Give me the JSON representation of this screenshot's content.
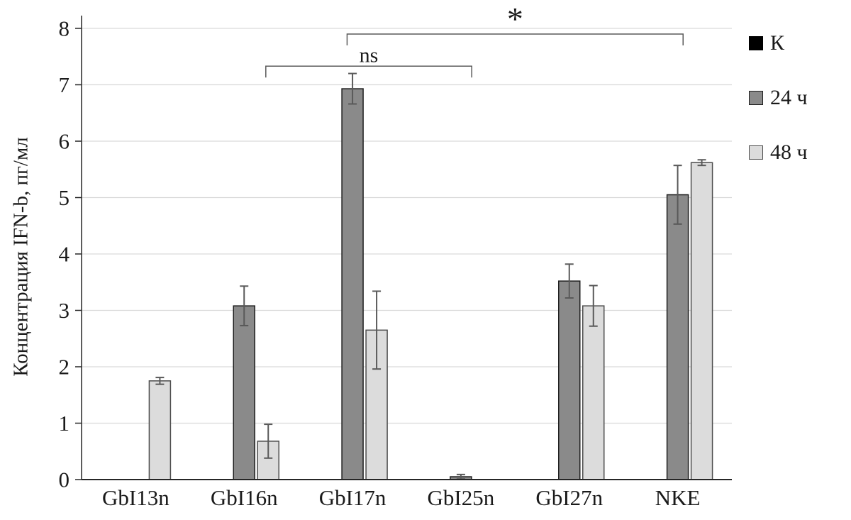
{
  "chart_data": {
    "type": "bar",
    "title": "",
    "xlabel": "",
    "ylabel": "Концентрация IFN-b, пг/мл",
    "ylim": [
      0,
      8
    ],
    "yticks": [
      0,
      1,
      2,
      3,
      4,
      5,
      6,
      7,
      8
    ],
    "grid": true,
    "legend_position": "right",
    "categories": [
      "GbI13n",
      "GbI16n",
      "GbI17n",
      "GbI25n",
      "GbI27n",
      "NKE"
    ],
    "series": [
      {
        "name": "К",
        "color": "#000000",
        "border": "#000000",
        "values": [
          0,
          0,
          0,
          0,
          0,
          0
        ],
        "errors": [
          0,
          0,
          0,
          0,
          0,
          0
        ]
      },
      {
        "name": "24 ч",
        "color": "#8a8a8a",
        "border": "#1f1f1f",
        "values": [
          0,
          3.08,
          6.93,
          0.05,
          3.52,
          5.05
        ],
        "errors": [
          0,
          0.35,
          0.27,
          0.04,
          0.3,
          0.52
        ]
      },
      {
        "name": "48 ч",
        "color": "#dcdcdc",
        "border": "#4d4d4d",
        "values": [
          1.75,
          0.68,
          2.65,
          0,
          3.08,
          5.62
        ],
        "errors": [
          0.06,
          0.3,
          0.69,
          0,
          0.36,
          0.05
        ]
      }
    ],
    "annotations": [
      {
        "label": "ns",
        "x1": 1.2,
        "x2": 3.1,
        "y": 7.33
      },
      {
        "label": "*",
        "x1": 1.95,
        "x2": 5.05,
        "y": 7.9
      }
    ]
  },
  "style_colors": {
    "gridline": "#d9d9d9",
    "axis": "#262626",
    "error_bar": "#595959",
    "bracket": "#595959",
    "text": "#1a1a1a"
  }
}
